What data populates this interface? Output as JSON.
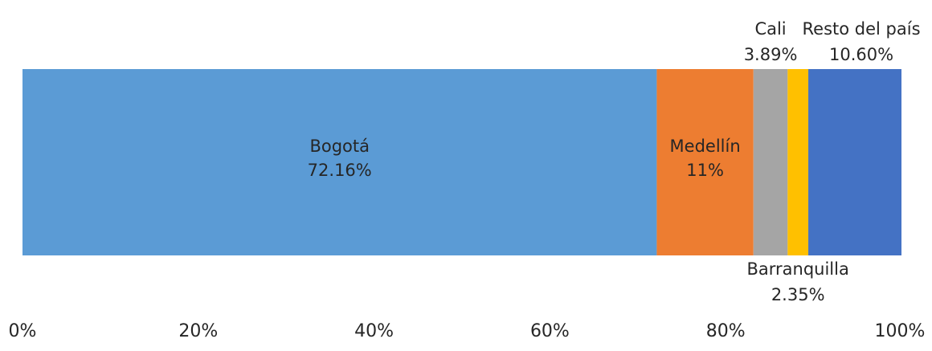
{
  "chart_data": {
    "type": "bar",
    "orientation": "horizontal",
    "stacked": true,
    "series": [
      {
        "name": "Bogotá",
        "values": [
          72.16
        ],
        "label": "72.16%",
        "color": "#5B9BD5",
        "label_position": "inside",
        "label_color": "#262626"
      },
      {
        "name": "Medellín",
        "values": [
          11
        ],
        "label": "11%",
        "color": "#ED7D31",
        "label_position": "inside",
        "label_color": "#1f3864"
      },
      {
        "name": "Cali",
        "values": [
          3.89
        ],
        "label": "3.89%",
        "color": "#A5A5A5",
        "label_position": "above"
      },
      {
        "name": "Barranquilla",
        "values": [
          2.35
        ],
        "label": "2.35%",
        "color": "#FFC000",
        "label_position": "below"
      },
      {
        "name": "Resto del país",
        "values": [
          10.6
        ],
        "label": "10.60%",
        "color": "#4472C4",
        "label_position": "above"
      }
    ],
    "xlim": [
      0,
      100
    ],
    "x_ticks": [
      "0%",
      "20%",
      "40%",
      "60%",
      "80%",
      "100%"
    ],
    "grid": false,
    "legend": "none"
  }
}
